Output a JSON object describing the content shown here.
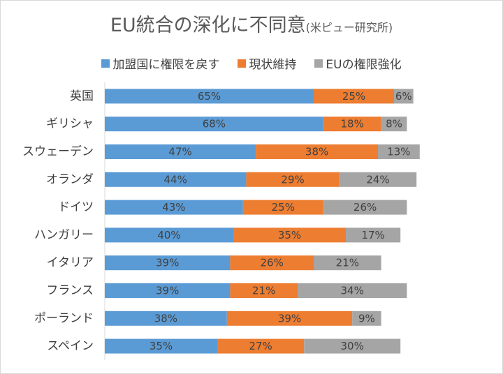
{
  "chart_data": {
    "type": "bar",
    "orientation": "horizontal",
    "stacked": true,
    "title": "EU統合の深化に不同意",
    "subtitle": "(米ピュー研究所)",
    "categories": [
      "英国",
      "ギリシャ",
      "スウェーデン",
      "オランダ",
      "ドイツ",
      "ハンガリー",
      "イタリア",
      "フランス",
      "ポーランド",
      "スペイン"
    ],
    "series": [
      {
        "name": "加盟国に権限を戻す",
        "color": "#5b9bd5",
        "values": [
          65,
          68,
          47,
          44,
          43,
          40,
          39,
          39,
          38,
          35
        ]
      },
      {
        "name": "現状維持",
        "color": "#ed7d31",
        "values": [
          25,
          18,
          38,
          29,
          25,
          35,
          26,
          21,
          39,
          27
        ]
      },
      {
        "name": "EUの権限強化",
        "color": "#a5a5a5",
        "values": [
          6,
          8,
          13,
          24,
          26,
          17,
          21,
          34,
          9,
          30
        ]
      }
    ],
    "value_suffix": "%",
    "xlim": [
      0,
      100
    ],
    "legend": "top",
    "grid": false
  }
}
